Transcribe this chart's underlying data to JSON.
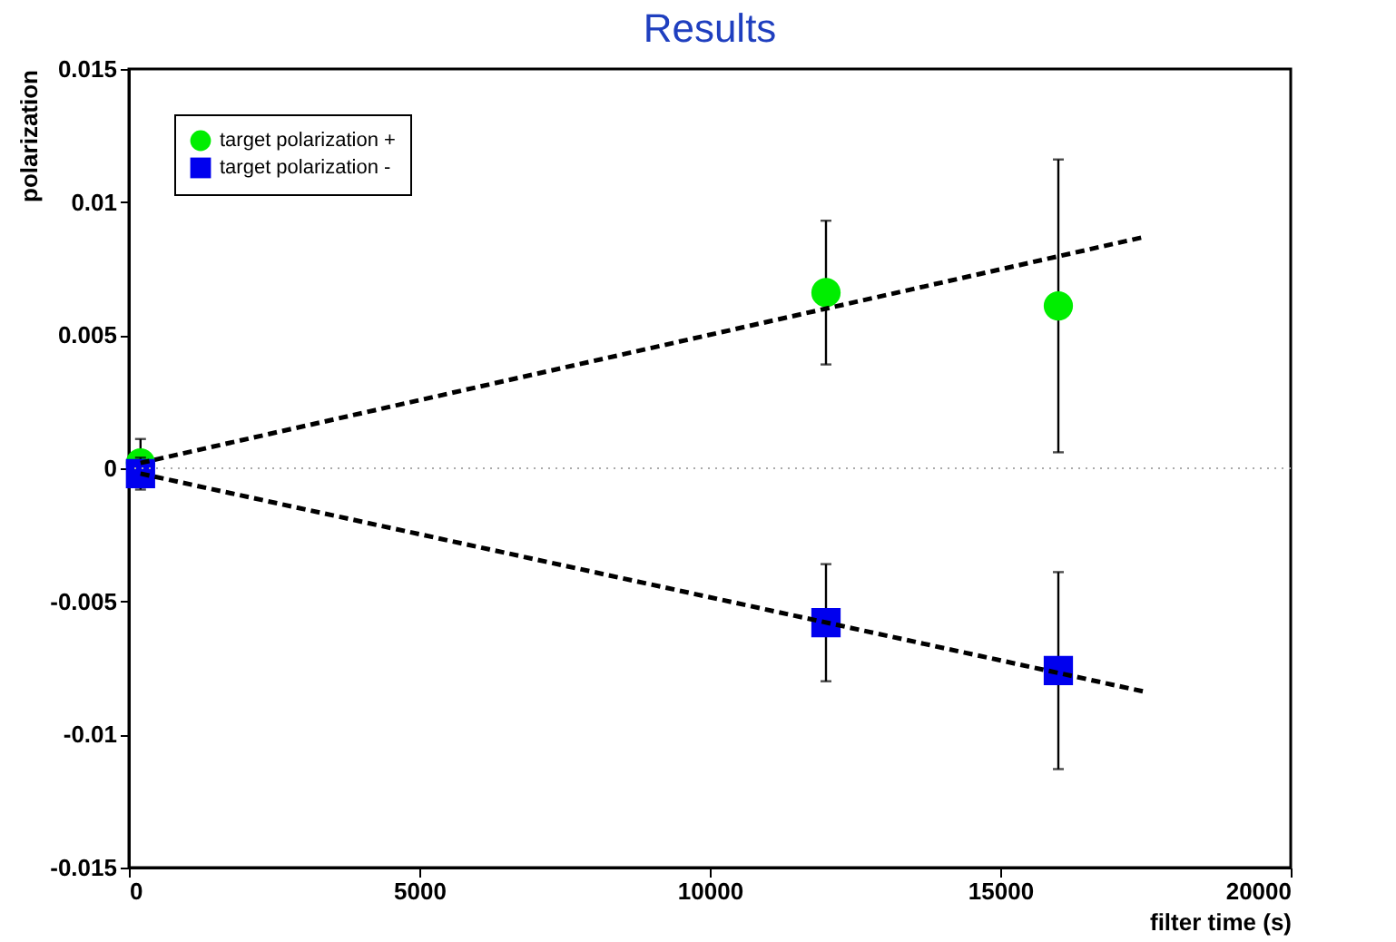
{
  "chart_data": {
    "type": "scatter",
    "title": "Results",
    "xlabel": "filter time (s)",
    "ylabel": "polarization",
    "xlim": [
      0,
      20000
    ],
    "xticks": [
      0,
      5000,
      10000,
      15000,
      20000
    ],
    "ylim": [
      -0.015,
      0.015
    ],
    "yticks": [
      -0.015,
      -0.01,
      -0.005,
      0,
      0.005,
      0.01,
      0.015
    ],
    "grid": false,
    "legend": "top left",
    "ref_lines": [
      {
        "axis": "y",
        "value": 0,
        "color": "#aaaaaa",
        "line_style": "dotted"
      }
    ],
    "series": [
      {
        "name": "target polarization +",
        "color": "#00ee00",
        "marker": "circle",
        "x": [
          200,
          12000,
          16000
        ],
        "values": [
          0.0002,
          0.0066,
          0.0061
        ],
        "errors": [
          0.0009,
          0.0027,
          0.0055
        ]
      },
      {
        "name": "target polarization -",
        "color": "#0000ee",
        "marker": "square",
        "x": [
          200,
          12000,
          16000
        ],
        "values": [
          -0.0002,
          -0.0058,
          -0.0076
        ],
        "errors": [
          0.0006,
          0.0022,
          0.0037
        ]
      },
      {
        "type": "line",
        "color": "#000000",
        "line_style": "dashed",
        "marker": "none",
        "x": [
          200,
          17500
        ],
        "values": [
          0.0002,
          0.0087
        ]
      },
      {
        "type": "line",
        "color": "#000000",
        "line_style": "dashed",
        "marker": "none",
        "x": [
          200,
          17500
        ],
        "values": [
          -0.0002,
          -0.0084
        ]
      }
    ]
  }
}
